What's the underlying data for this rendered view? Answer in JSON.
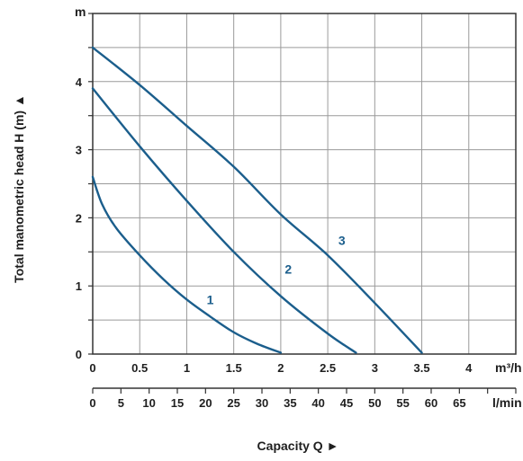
{
  "chart_data": {
    "type": "line",
    "ylabel": "Total manometric head H (m) ▲",
    "xlabel": "Capacity Q ►",
    "y_unit": "m",
    "x_unit": "m³/h",
    "x2_unit": "l/min",
    "xlim": [
      0,
      4.5
    ],
    "ylim": [
      0,
      5
    ],
    "x_ticks": [
      "0",
      "0.5",
      "1",
      "1.5",
      "2",
      "2.5",
      "3",
      "3.5",
      "4"
    ],
    "x_tick_values": [
      0,
      0.5,
      1,
      1.5,
      2,
      2.5,
      3,
      3.5,
      4
    ],
    "y_ticks": [
      "0",
      "1",
      "2",
      "3",
      "4"
    ],
    "y_tick_values": [
      0,
      1,
      2,
      3,
      4
    ],
    "x2_ticks": [
      "0",
      "5",
      "10",
      "15",
      "20",
      "25",
      "30",
      "35",
      "40",
      "45",
      "50",
      "55",
      "60",
      "65"
    ],
    "x2_tick_values": [
      0,
      5,
      10,
      15,
      20,
      25,
      30,
      35,
      40,
      45,
      50,
      55,
      60,
      65
    ],
    "x2_max": 75,
    "grid": true,
    "curve_color": "#1b5e8c",
    "series": [
      {
        "name": "1",
        "x": [
          0,
          0.1,
          0.25,
          0.5,
          0.75,
          1.0,
          1.25,
          1.5,
          1.75,
          2.0
        ],
        "y": [
          2.6,
          2.2,
          1.85,
          1.45,
          1.1,
          0.8,
          0.55,
          0.32,
          0.15,
          0.02
        ]
      },
      {
        "name": "2",
        "x": [
          0,
          0.5,
          1.0,
          1.5,
          2.0,
          2.5,
          2.8
        ],
        "y": [
          3.9,
          3.05,
          2.25,
          1.5,
          0.85,
          0.3,
          0.02
        ]
      },
      {
        "name": "3",
        "x": [
          0,
          0.5,
          1.0,
          1.5,
          2.0,
          2.5,
          3.0,
          3.5
        ],
        "y": [
          4.5,
          3.95,
          3.35,
          2.75,
          2.05,
          1.45,
          0.75,
          0.02
        ]
      }
    ],
    "annotations": [
      {
        "text": "1",
        "x": 1.25,
        "y": 0.73
      },
      {
        "text": "2",
        "x": 2.08,
        "y": 1.18
      },
      {
        "text": "3",
        "x": 2.65,
        "y": 1.6
      }
    ]
  }
}
